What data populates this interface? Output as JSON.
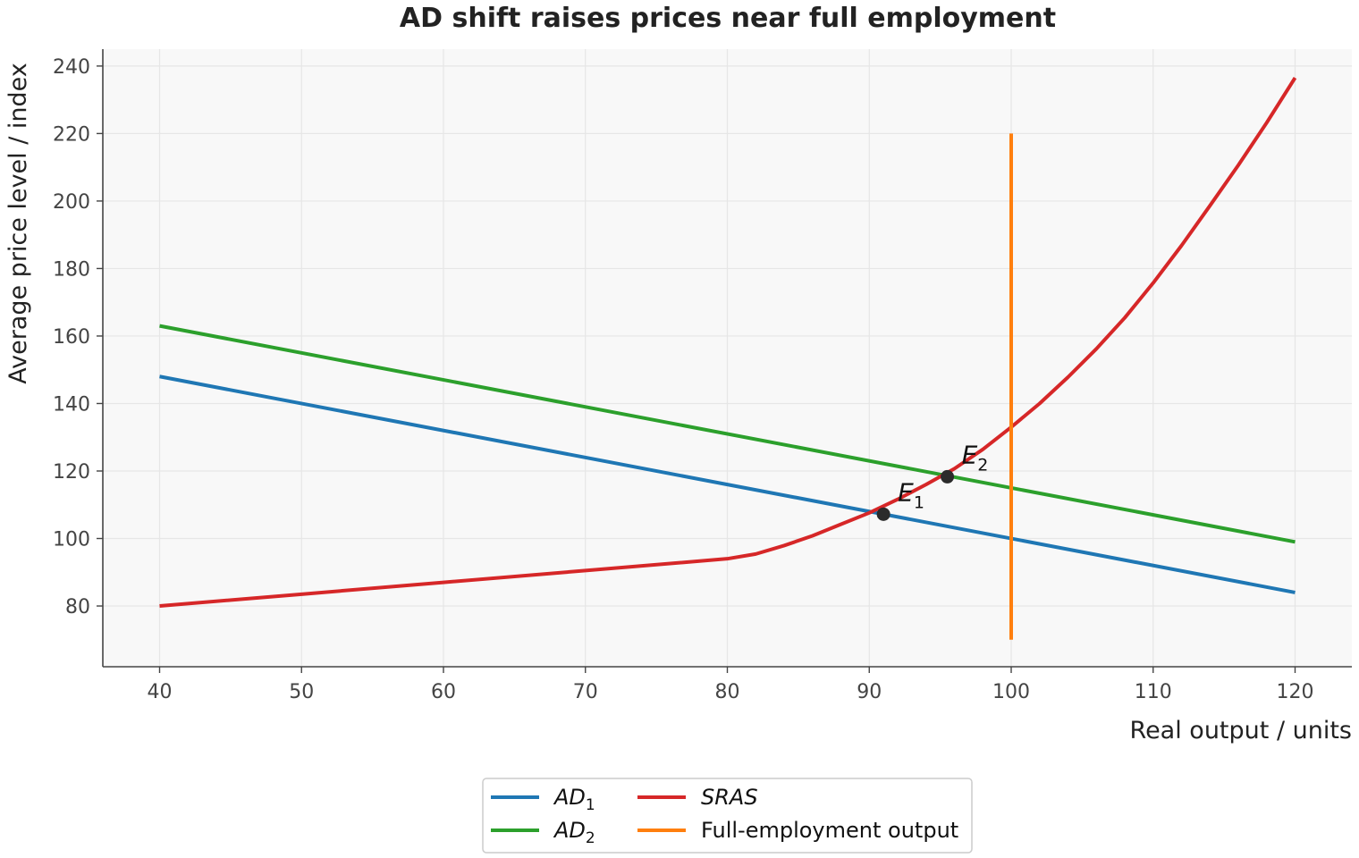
{
  "chart_data": {
    "type": "line",
    "title": "AD shift raises prices near full employment",
    "xlabel": "Real output / units",
    "ylabel": "Average price level / index",
    "xlim": [
      36,
      124
    ],
    "ylim": [
      62,
      245
    ],
    "xticks": [
      40,
      50,
      60,
      70,
      80,
      90,
      100,
      110,
      120
    ],
    "yticks": [
      80,
      100,
      120,
      140,
      160,
      180,
      200,
      220,
      240
    ],
    "grid": true,
    "legend_position": "bottom-center",
    "series": [
      {
        "id": "ad1",
        "name": "AD",
        "name_sub": "1",
        "italic": true,
        "color": "#1f77b4",
        "x": [
          40,
          120
        ],
        "y": [
          148,
          84
        ]
      },
      {
        "id": "ad2",
        "name": "AD",
        "name_sub": "2",
        "italic": true,
        "color": "#2ca02c",
        "x": [
          40,
          120
        ],
        "y": [
          163,
          99
        ]
      },
      {
        "id": "sras",
        "name": "SRAS",
        "name_sub": "",
        "italic": true,
        "color": "#d62728",
        "x": [
          40,
          50,
          60,
          70,
          80,
          82,
          84,
          86,
          88,
          90,
          92,
          94,
          96,
          98,
          100,
          102,
          104,
          106,
          108,
          110,
          112,
          114,
          116,
          118,
          120
        ],
        "y": [
          80,
          83.5,
          87,
          90.5,
          94,
          95.4,
          97.9,
          100.8,
          104.2,
          107.6,
          111.6,
          116.0,
          120.7,
          126.4,
          133.0,
          140.0,
          147.8,
          156.2,
          165.4,
          175.7,
          186.8,
          198.6,
          210.6,
          223.2,
          236.5
        ]
      },
      {
        "id": "fe",
        "name": "Full-employment output",
        "name_sub": "",
        "italic": false,
        "color": "#ff7f0e",
        "x": [
          100,
          100
        ],
        "y": [
          70,
          220
        ]
      }
    ],
    "points": [
      {
        "id": "E1",
        "label": "E",
        "sub": "1",
        "x": 91,
        "y": 107.2
      },
      {
        "id": "E2",
        "label": "E",
        "sub": "2",
        "x": 95.5,
        "y": 118.3
      }
    ],
    "colors": {
      "plot_background": "#f8f8f8",
      "grid": "#e6e6e6",
      "axis": "#444444",
      "point": "#2b2b2b"
    }
  }
}
